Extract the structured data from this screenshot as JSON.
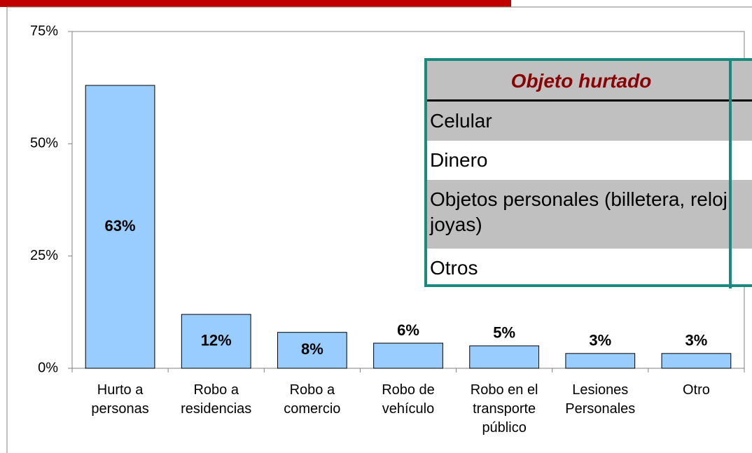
{
  "chart_data": {
    "type": "bar",
    "categories": [
      "Hurto a personas",
      "Robo a residencias",
      "Robo a comercio",
      "Robo de vehículo",
      "Robo en el transporte público",
      "Lesiones Personales",
      "Otro"
    ],
    "values": [
      63,
      12,
      8,
      5.6,
      5,
      3.3,
      3.3
    ],
    "value_labels": [
      "63%",
      "12%",
      "8%",
      "6%",
      "5%",
      "3%",
      "3%"
    ],
    "color": "#99ccff",
    "ylim": [
      0,
      75
    ],
    "yticks": [
      {
        "value": 0,
        "label": "0%"
      },
      {
        "value": 25,
        "label": "25%"
      },
      {
        "value": 50,
        "label": "50%"
      },
      {
        "value": 75,
        "label": "75%"
      }
    ]
  },
  "table": {
    "header": "Objeto hurtado",
    "rows": [
      "Celular",
      "Dinero",
      "Objetos personales (billetera, reloj, joyas)",
      "Otros"
    ]
  }
}
